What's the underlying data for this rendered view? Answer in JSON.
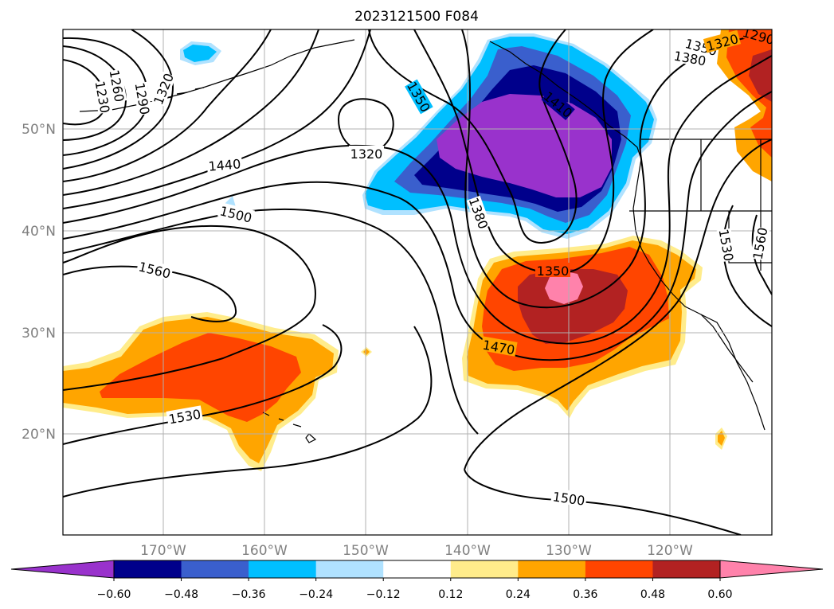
{
  "title": "2023121500 F084",
  "map": {
    "lon_labels": [
      "170°W",
      "160°W",
      "150°W",
      "140°W",
      "130°W",
      "120°W"
    ],
    "lat_labels": [
      "50°N",
      "40°N",
      "30°N",
      "20°N"
    ],
    "contour_labels": [
      "1230",
      "1260",
      "1290",
      "1320",
      "1350",
      "1380",
      "1410",
      "1440",
      "1470",
      "1500",
      "1530",
      "1560"
    ],
    "fill_colors": {
      "neg_lt_060": "#9932cc",
      "neg_048_060": "#00008b",
      "neg_036_048": "#3a5fcd",
      "neg_024_036": "#00bfff",
      "neg_012_024": "#b0e2ff",
      "pos_012_024": "#ffec8b",
      "pos_024_036": "#ffa500",
      "pos_036_048": "#ff4500",
      "pos_048_060": "#b22222",
      "pos_gt_060": "#ff82ab"
    }
  },
  "colorbar": {
    "ticks": [
      "−0.60",
      "−0.48",
      "−0.36",
      "−0.24",
      "−0.12",
      "0.12",
      "0.24",
      "0.36",
      "0.48",
      "0.60"
    ],
    "colors": [
      "#9932cc",
      "#00008b",
      "#3a5fcd",
      "#00bfff",
      "#b0e2ff",
      "#ffffff",
      "#ffec8b",
      "#ffa500",
      "#ff4500",
      "#b22222",
      "#ff82ab"
    ]
  }
}
